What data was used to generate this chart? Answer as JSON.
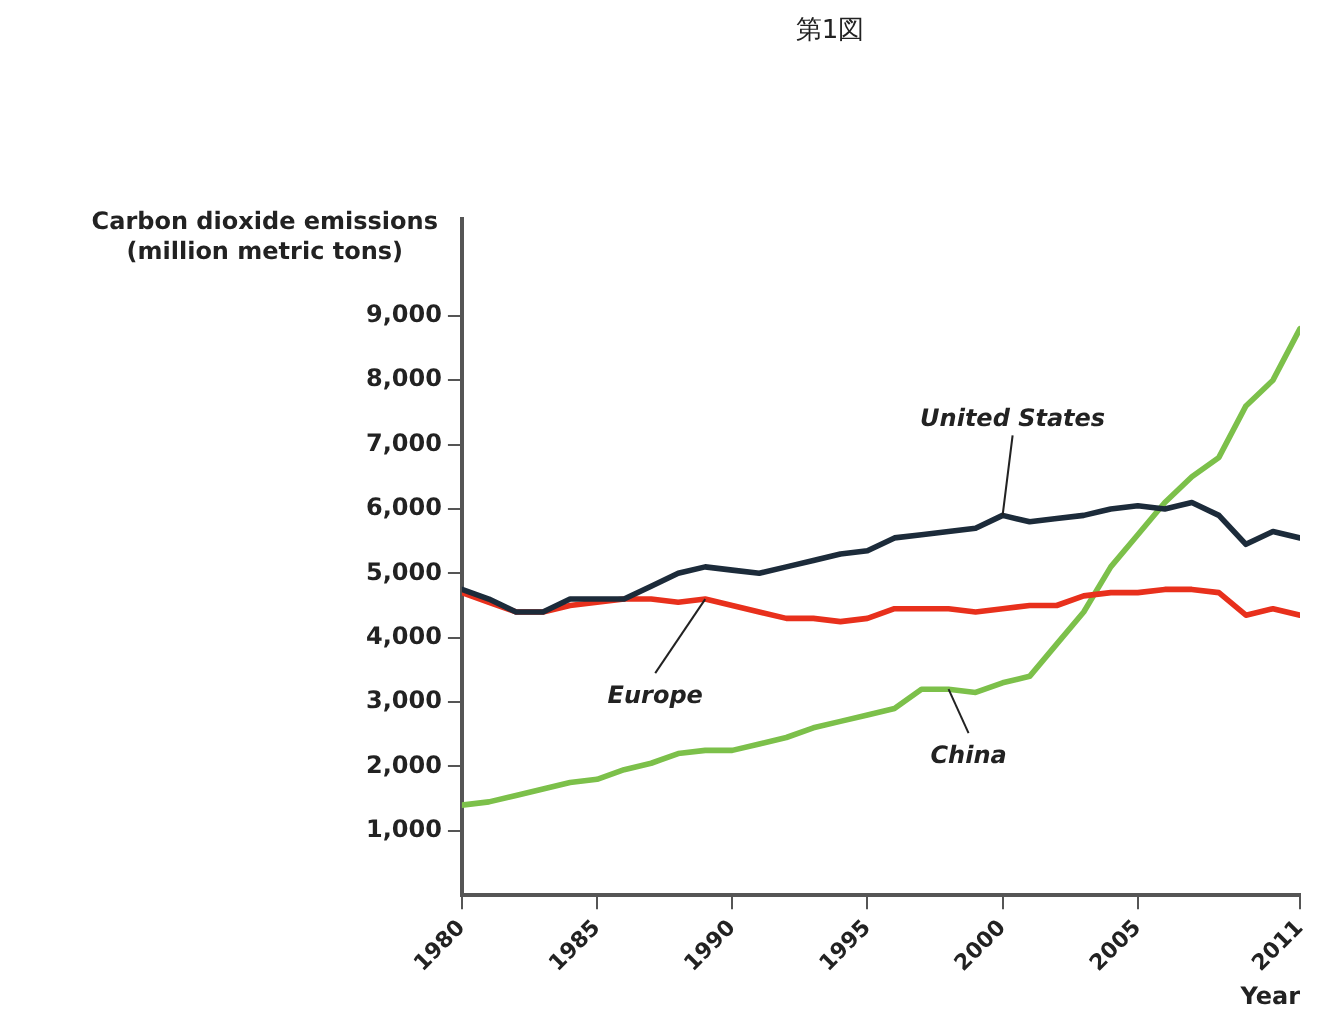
{
  "chart_data": {
    "type": "line",
    "title": "第1図",
    "xlabel": "Year",
    "ylabel": "Carbon dioxide emissions\n(million metric tons)",
    "x": [
      1980,
      1981,
      1982,
      1983,
      1984,
      1985,
      1986,
      1987,
      1988,
      1989,
      1990,
      1991,
      1992,
      1993,
      1994,
      1995,
      1996,
      1997,
      1998,
      1999,
      2000,
      2001,
      2002,
      2003,
      2004,
      2005,
      2006,
      2007,
      2008,
      2009,
      2010,
      2011
    ],
    "xlim": [
      1980,
      2011
    ],
    "xticks": [
      1980,
      1985,
      1990,
      1995,
      2000,
      2005,
      2011
    ],
    "ylim": [
      0,
      10500
    ],
    "yticks": [
      {
        "value": 1000,
        "label": "1,000"
      },
      {
        "value": 2000,
        "label": "2,000"
      },
      {
        "value": 3000,
        "label": "3,000"
      },
      {
        "value": 4000,
        "label": "4,000"
      },
      {
        "value": 5000,
        "label": "5,000"
      },
      {
        "value": 6000,
        "label": "6,000"
      },
      {
        "value": 7000,
        "label": "7,000"
      },
      {
        "value": 8000,
        "label": "8,000"
      },
      {
        "value": 9000,
        "label": "9,000"
      }
    ],
    "grid": false,
    "legend": false,
    "marker": "none",
    "line_style": "solid",
    "series": [
      {
        "name": "United States",
        "color": "#1c2b3a",
        "values": [
          4750,
          4600,
          4400,
          4400,
          4600,
          4600,
          4600,
          4800,
          5000,
          5100,
          5050,
          5000,
          5100,
          5200,
          5300,
          5350,
          5550,
          5600,
          5650,
          5700,
          5900,
          5800,
          5850,
          5900,
          6000,
          6050,
          6000,
          6100,
          5900,
          5450,
          5650,
          5550
        ]
      },
      {
        "name": "Europe",
        "color": "#e8301c",
        "values": [
          4700,
          4550,
          4400,
          4400,
          4500,
          4550,
          4600,
          4600,
          4550,
          4600,
          4500,
          4400,
          4300,
          4300,
          4250,
          4300,
          4450,
          4450,
          4450,
          4400,
          4450,
          4500,
          4500,
          4650,
          4700,
          4700,
          4750,
          4750,
          4700,
          4350,
          4450,
          4350
        ]
      },
      {
        "name": "China",
        "color": "#7cc04a",
        "values": [
          1400,
          1450,
          1550,
          1650,
          1750,
          1800,
          1950,
          2050,
          2200,
          2250,
          2250,
          2350,
          2450,
          2600,
          2700,
          2800,
          2900,
          3200,
          3200,
          3150,
          3300,
          3400,
          3900,
          4400,
          5100,
          5600,
          6100,
          6500,
          6800,
          7600,
          8000,
          8800
        ]
      }
    ]
  }
}
